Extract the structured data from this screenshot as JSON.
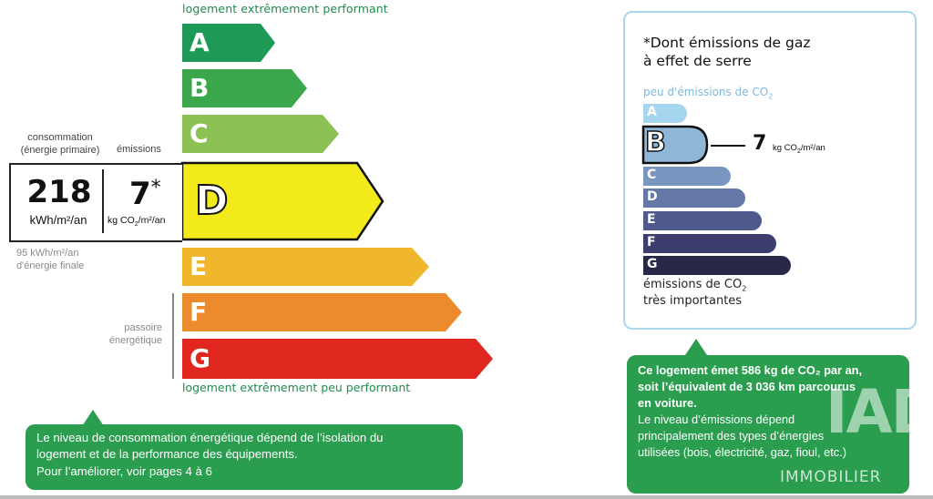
{
  "dpe": {
    "top_label": "logement extrêmement performant",
    "bottom_label": "logement extrêmement peu performant",
    "classes": [
      {
        "letter": "A",
        "color": "#1e9a56"
      },
      {
        "letter": "B",
        "color": "#3aa84a"
      },
      {
        "letter": "C",
        "color": "#8cc153"
      },
      {
        "letter": "D",
        "color": "#f2ea1a"
      },
      {
        "letter": "E",
        "color": "#f0b62c"
      },
      {
        "letter": "F",
        "color": "#ec8a2e"
      },
      {
        "letter": "G",
        "color": "#e0271f"
      }
    ],
    "current_class": "D",
    "consumption_label_1": "consommation",
    "consumption_label_2": "(énergie primaire)",
    "emissions_label": "émissions",
    "consumption_value": "218",
    "consumption_unit": "kWh/m²/an",
    "emissions_value": "7",
    "emissions_star": "*",
    "emissions_unit_prefix": "kg CO",
    "emissions_unit_sub": "2",
    "emissions_unit_suffix": "/m²/an",
    "final_energy_1": "95 kWh/m²/an",
    "final_energy_2": "d'énergie finale",
    "passoire_1": "passoire",
    "passoire_2": "énergétique"
  },
  "ges": {
    "title_1": "*Dont émissions de gaz",
    "title_2": "à effet de serre",
    "top_label_prefix": "peu d'émissions de CO",
    "top_label_sub": "2",
    "classes": [
      {
        "letter": "A",
        "color": "#a6d5f0"
      },
      {
        "letter": "B",
        "color": "#8fb5d7"
      },
      {
        "letter": "C",
        "color": "#7896bf"
      },
      {
        "letter": "D",
        "color": "#6478a7"
      },
      {
        "letter": "E",
        "color": "#4f5a8c"
      },
      {
        "letter": "F",
        "color": "#3c3f6d"
      },
      {
        "letter": "G",
        "color": "#282848"
      }
    ],
    "current_class": "B",
    "value": "7",
    "unit_prefix": "kg CO",
    "unit_sub": "2",
    "unit_suffix": "/m²/an",
    "bottom_label_1_prefix": "émissions de CO",
    "bottom_label_1_sub": "2",
    "bottom_label_2": "très importantes"
  },
  "notes": {
    "left_line_1": "Le niveau de consommation énergétique dépend de l’isolation du",
    "left_line_2": "logement et de la performance des équipements.",
    "left_line_3": "Pour l’améliorer, voir pages 4 à 6",
    "right_bold_1": "Ce logement émet 586 kg de CO₂ par an,",
    "right_bold_2": "soit l’équivalent de 3 036 km parcourus",
    "right_bold_3": "en voiture.",
    "right_line_1": "Le niveau d’émissions dépend",
    "right_line_2": "principalement des types d’énergies",
    "right_line_3": "utilisées (bois, électricité, gaz, fioul, etc.)"
  },
  "watermark": {
    "brand": "IAD",
    "sub": "IMMOBILIER"
  }
}
